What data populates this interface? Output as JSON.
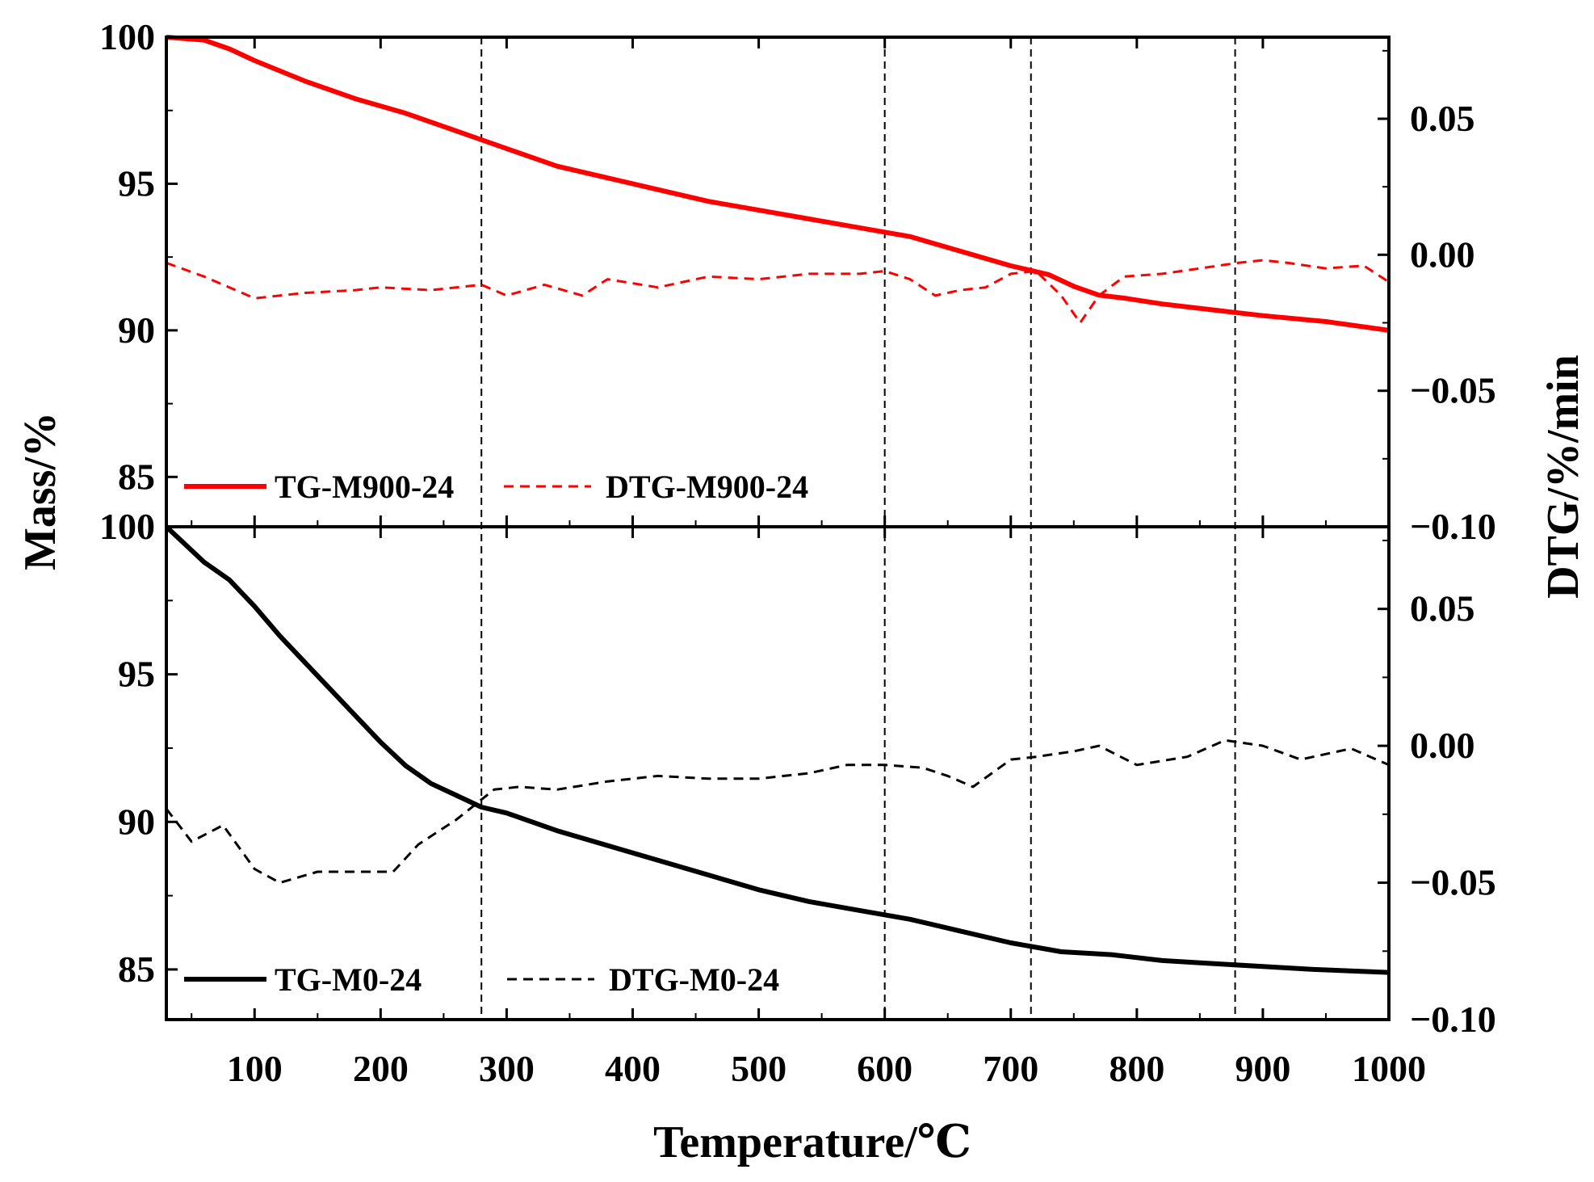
{
  "chart_data": [
    {
      "panel": "top",
      "type": "line",
      "xlim": [
        30,
        1000
      ],
      "ylim_left": [
        83.3,
        100
      ],
      "ylim_right": [
        -0.1,
        0.08
      ],
      "left_ticks": [
        85,
        90,
        95,
        100
      ],
      "right_ticks": [
        -0.1,
        -0.05,
        0.0,
        0.05
      ],
      "right_tick_labels": [
        "−0.10",
        "−0.05",
        "0.00",
        "0.05"
      ],
      "series": [
        {
          "name": "TG-M900-24",
          "axis": "left",
          "style": "solid",
          "color": "#ff0000",
          "x": [
            30,
            60,
            80,
            100,
            140,
            180,
            220,
            260,
            300,
            340,
            380,
            420,
            460,
            500,
            540,
            580,
            620,
            660,
            700,
            730,
            750,
            770,
            790,
            820,
            860,
            900,
            950,
            1000
          ],
          "y": [
            100,
            99.9,
            99.6,
            99.2,
            98.5,
            97.9,
            97.4,
            96.8,
            96.2,
            95.6,
            95.2,
            94.8,
            94.4,
            94.1,
            93.8,
            93.5,
            93.2,
            92.7,
            92.2,
            91.9,
            91.5,
            91.2,
            91.1,
            90.9,
            90.7,
            90.5,
            90.3,
            90.0
          ]
        },
        {
          "name": "DTG-M900-24",
          "axis": "right",
          "style": "dashed",
          "color": "#ff0000",
          "x": [
            30,
            60,
            100,
            140,
            180,
            200,
            240,
            280,
            300,
            330,
            360,
            380,
            420,
            460,
            500,
            540,
            580,
            600,
            620,
            640,
            660,
            680,
            700,
            720,
            740,
            755,
            770,
            790,
            820,
            850,
            880,
            900,
            920,
            950,
            980,
            1000
          ],
          "y": [
            -0.003,
            -0.008,
            -0.016,
            -0.014,
            -0.013,
            -0.012,
            -0.013,
            -0.011,
            -0.015,
            -0.011,
            -0.015,
            -0.009,
            -0.012,
            -0.008,
            -0.009,
            -0.007,
            -0.007,
            -0.006,
            -0.009,
            -0.015,
            -0.013,
            -0.012,
            -0.007,
            -0.006,
            -0.015,
            -0.025,
            -0.015,
            -0.008,
            -0.007,
            -0.005,
            -0.003,
            -0.002,
            -0.003,
            -0.005,
            -0.004,
            -0.01
          ]
        }
      ],
      "legend": [
        "TG-M900-24",
        "DTG-M900-24"
      ]
    },
    {
      "panel": "bottom",
      "type": "line",
      "xlim": [
        30,
        1000
      ],
      "ylim_left": [
        83.3,
        100
      ],
      "ylim_right": [
        -0.1,
        0.08
      ],
      "left_ticks": [
        85,
        90,
        95,
        100
      ],
      "right_ticks": [
        -0.1,
        -0.05,
        0.0,
        0.05
      ],
      "right_tick_labels": [
        "−0.10",
        "−0.05",
        "0.00",
        "0.05"
      ],
      "series": [
        {
          "name": "TG-M0-24",
          "axis": "left",
          "style": "solid",
          "color": "#000000",
          "x": [
            30,
            40,
            60,
            80,
            100,
            120,
            140,
            160,
            180,
            200,
            220,
            240,
            260,
            280,
            300,
            340,
            380,
            420,
            460,
            500,
            540,
            580,
            620,
            660,
            700,
            740,
            780,
            820,
            860,
            900,
            940,
            1000
          ],
          "y": [
            100,
            99.6,
            98.8,
            98.2,
            97.3,
            96.3,
            95.4,
            94.5,
            93.6,
            92.7,
            91.9,
            91.3,
            90.9,
            90.5,
            90.3,
            89.7,
            89.2,
            88.7,
            88.2,
            87.7,
            87.3,
            87.0,
            86.7,
            86.3,
            85.9,
            85.6,
            85.5,
            85.3,
            85.2,
            85.1,
            85.0,
            84.9
          ]
        },
        {
          "name": "DTG-M0-24",
          "axis": "right",
          "style": "dashed",
          "color": "#000000",
          "x": [
            30,
            50,
            75,
            100,
            120,
            150,
            180,
            210,
            230,
            260,
            290,
            310,
            340,
            380,
            420,
            460,
            500,
            540,
            570,
            600,
            630,
            650,
            670,
            700,
            720,
            750,
            770,
            800,
            840,
            870,
            900,
            930,
            970,
            1000
          ],
          "y": [
            -0.023,
            -0.035,
            -0.029,
            -0.045,
            -0.05,
            -0.046,
            -0.046,
            -0.046,
            -0.036,
            -0.027,
            -0.016,
            -0.015,
            -0.016,
            -0.013,
            -0.011,
            -0.012,
            -0.012,
            -0.01,
            -0.007,
            -0.007,
            -0.008,
            -0.011,
            -0.015,
            -0.005,
            -0.004,
            -0.002,
            0.0,
            -0.007,
            -0.004,
            0.002,
            0.0,
            -0.005,
            -0.001,
            -0.007
          ]
        }
      ],
      "legend": [
        "TG-M0-24",
        "DTG-M0-24"
      ]
    }
  ],
  "shared": {
    "x_ticks": [
      100,
      200,
      300,
      400,
      500,
      600,
      700,
      800,
      900,
      1000
    ],
    "vlines": [
      280,
      600,
      716,
      878
    ],
    "xlabel": "Temperature/℃",
    "ylabel_left": "Mass/%",
    "ylabel_right": "DTG/%/min"
  }
}
